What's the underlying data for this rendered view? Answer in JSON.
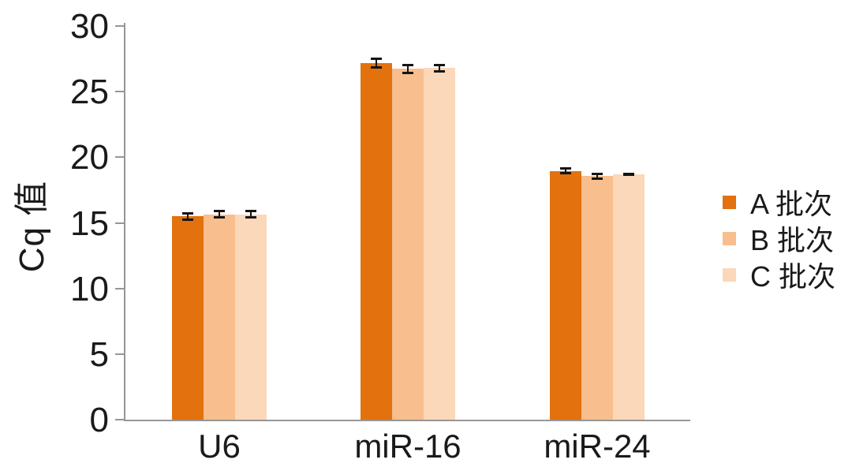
{
  "figure": {
    "background": "#ffffff",
    "axis_color": "#969696",
    "text_color": "#1a1a1a",
    "error_bar_color": "#141414"
  },
  "chart_data": {
    "type": "bar",
    "title": "",
    "xlabel": "",
    "ylabel": "Cq 值",
    "categories": [
      "U6",
      "miR-16",
      "miR-24"
    ],
    "series": [
      {
        "name": "A 批次",
        "color": "#e2710e",
        "values": [
          15.5,
          27.15,
          18.95
        ],
        "errors": [
          0.25,
          0.33,
          0.18
        ]
      },
      {
        "name": "B 批次",
        "color": "#f8be8d",
        "values": [
          15.65,
          26.75,
          18.55
        ],
        "errors": [
          0.25,
          0.3,
          0.2
        ]
      },
      {
        "name": "C 批次",
        "color": "#fbd8b9",
        "values": [
          15.65,
          26.8,
          18.7
        ],
        "errors": [
          0.25,
          0.25,
          0.05
        ]
      }
    ],
    "ylim": [
      0,
      30
    ],
    "yticks": [
      0,
      5,
      10,
      15,
      20,
      25,
      30
    ],
    "grid": false,
    "legend_position": "right",
    "error_bars": true
  }
}
